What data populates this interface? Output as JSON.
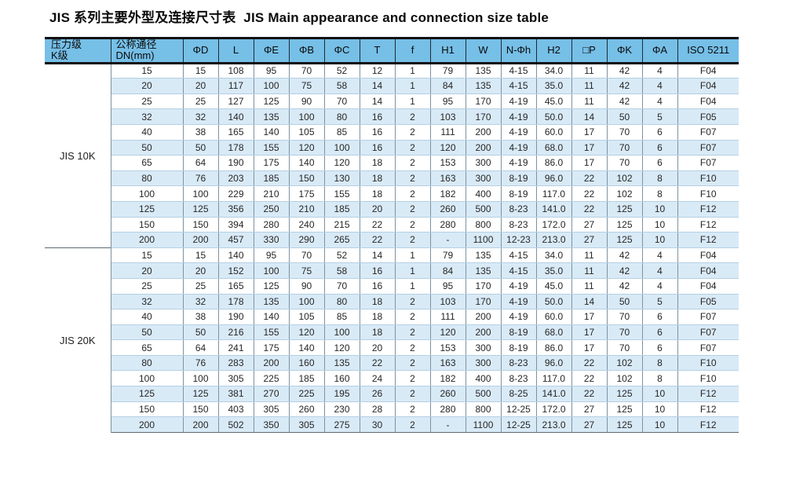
{
  "page_title": "JIS 系列主要外型及连接尺寸表  JIS Main appearance and connection size table",
  "colors": {
    "header_bg": "#76BFE7",
    "stripe_bg": "#D9EAF7",
    "header_rule": "#101010"
  },
  "table": {
    "header": {
      "pressure_class": [
        "压力级",
        "K级"
      ],
      "nominal_diameter": [
        "公称通径",
        "DN(mm)"
      ],
      "measures": [
        "ΦD",
        "L",
        "ΦE",
        "ΦB",
        "ΦC",
        "T",
        "f",
        "H1",
        "W",
        "N-Φh",
        "H2",
        "□P",
        "ΦK",
        "ΦA",
        "ISO 5211"
      ]
    },
    "groups": [
      {
        "label": "JIS 10K",
        "rows": [
          [
            "15",
            "15",
            "108",
            "95",
            "70",
            "52",
            "12",
            "1",
            "79",
            "135",
            "4-15",
            "34.0",
            "11",
            "42",
            "4",
            "F04"
          ],
          [
            "20",
            "20",
            "117",
            "100",
            "75",
            "58",
            "14",
            "1",
            "84",
            "135",
            "4-15",
            "35.0",
            "11",
            "42",
            "4",
            "F04"
          ],
          [
            "25",
            "25",
            "127",
            "125",
            "90",
            "70",
            "14",
            "1",
            "95",
            "170",
            "4-19",
            "45.0",
            "11",
            "42",
            "4",
            "F04"
          ],
          [
            "32",
            "32",
            "140",
            "135",
            "100",
            "80",
            "16",
            "2",
            "103",
            "170",
            "4-19",
            "50.0",
            "14",
            "50",
            "5",
            "F05"
          ],
          [
            "40",
            "38",
            "165",
            "140",
            "105",
            "85",
            "16",
            "2",
            "111",
            "200",
            "4-19",
            "60.0",
            "17",
            "70",
            "6",
            "F07"
          ],
          [
            "50",
            "50",
            "178",
            "155",
            "120",
            "100",
            "16",
            "2",
            "120",
            "200",
            "4-19",
            "68.0",
            "17",
            "70",
            "6",
            "F07"
          ],
          [
            "65",
            "64",
            "190",
            "175",
            "140",
            "120",
            "18",
            "2",
            "153",
            "300",
            "4-19",
            "86.0",
            "17",
            "70",
            "6",
            "F07"
          ],
          [
            "80",
            "76",
            "203",
            "185",
            "150",
            "130",
            "18",
            "2",
            "163",
            "300",
            "8-19",
            "96.0",
            "22",
            "102",
            "8",
            "F10"
          ],
          [
            "100",
            "100",
            "229",
            "210",
            "175",
            "155",
            "18",
            "2",
            "182",
            "400",
            "8-19",
            "117.0",
            "22",
            "102",
            "8",
            "F10"
          ],
          [
            "125",
            "125",
            "356",
            "250",
            "210",
            "185",
            "20",
            "2",
            "260",
            "500",
            "8-23",
            "141.0",
            "22",
            "125",
            "10",
            "F12"
          ],
          [
            "150",
            "150",
            "394",
            "280",
            "240",
            "215",
            "22",
            "2",
            "280",
            "800",
            "8-23",
            "172.0",
            "27",
            "125",
            "10",
            "F12"
          ],
          [
            "200",
            "200",
            "457",
            "330",
            "290",
            "265",
            "22",
            "2",
            "-",
            "1100",
            "12-23",
            "213.0",
            "27",
            "125",
            "10",
            "F12"
          ]
        ]
      },
      {
        "label": "JIS 20K",
        "rows": [
          [
            "15",
            "15",
            "140",
            "95",
            "70",
            "52",
            "14",
            "1",
            "79",
            "135",
            "4-15",
            "34.0",
            "11",
            "42",
            "4",
            "F04"
          ],
          [
            "20",
            "20",
            "152",
            "100",
            "75",
            "58",
            "16",
            "1",
            "84",
            "135",
            "4-15",
            "35.0",
            "11",
            "42",
            "4",
            "F04"
          ],
          [
            "25",
            "25",
            "165",
            "125",
            "90",
            "70",
            "16",
            "1",
            "95",
            "170",
            "4-19",
            "45.0",
            "11",
            "42",
            "4",
            "F04"
          ],
          [
            "32",
            "32",
            "178",
            "135",
            "100",
            "80",
            "18",
            "2",
            "103",
            "170",
            "4-19",
            "50.0",
            "14",
            "50",
            "5",
            "F05"
          ],
          [
            "40",
            "38",
            "190",
            "140",
            "105",
            "85",
            "18",
            "2",
            "111",
            "200",
            "4-19",
            "60.0",
            "17",
            "70",
            "6",
            "F07"
          ],
          [
            "50",
            "50",
            "216",
            "155",
            "120",
            "100",
            "18",
            "2",
            "120",
            "200",
            "8-19",
            "68.0",
            "17",
            "70",
            "6",
            "F07"
          ],
          [
            "65",
            "64",
            "241",
            "175",
            "140",
            "120",
            "20",
            "2",
            "153",
            "300",
            "8-19",
            "86.0",
            "17",
            "70",
            "6",
            "F07"
          ],
          [
            "80",
            "76",
            "283",
            "200",
            "160",
            "135",
            "22",
            "2",
            "163",
            "300",
            "8-23",
            "96.0",
            "22",
            "102",
            "8",
            "F10"
          ],
          [
            "100",
            "100",
            "305",
            "225",
            "185",
            "160",
            "24",
            "2",
            "182",
            "400",
            "8-23",
            "117.0",
            "22",
            "102",
            "8",
            "F10"
          ],
          [
            "125",
            "125",
            "381",
            "270",
            "225",
            "195",
            "26",
            "2",
            "260",
            "500",
            "8-25",
            "141.0",
            "22",
            "125",
            "10",
            "F12"
          ],
          [
            "150",
            "150",
            "403",
            "305",
            "260",
            "230",
            "28",
            "2",
            "280",
            "800",
            "12-25",
            "172.0",
            "27",
            "125",
            "10",
            "F12"
          ],
          [
            "200",
            "200",
            "502",
            "350",
            "305",
            "275",
            "30",
            "2",
            "-",
            "1100",
            "12-25",
            "213.0",
            "27",
            "125",
            "10",
            "F12"
          ]
        ]
      }
    ]
  }
}
